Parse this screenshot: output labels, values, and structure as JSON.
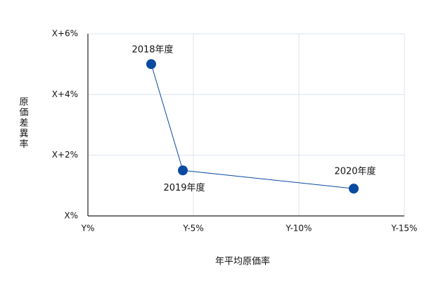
{
  "chart_data": {
    "type": "scatter",
    "x_label": "年平均原価率",
    "y_label": "原価差異率",
    "x": [
      -3,
      -4.5,
      -12.6
    ],
    "values": [
      5,
      1.5,
      0.9
    ],
    "point_labels": [
      "2018年度",
      "2019年度",
      "2020年度"
    ],
    "color": "#0a4aa0",
    "connect": true,
    "xlim": [
      0,
      -15
    ],
    "xticks": [
      {
        "value": 0,
        "label": "Y%"
      },
      {
        "value": -5,
        "label": "Y-5%"
      },
      {
        "value": -10,
        "label": "Y-10%"
      },
      {
        "value": -15,
        "label": "Y-15%"
      }
    ],
    "ylim": [
      0,
      6
    ],
    "yticks": [
      {
        "value": 0,
        "label": "X%"
      },
      {
        "value": 2,
        "label": "X+2%"
      },
      {
        "value": 4,
        "label": "X+4%"
      },
      {
        "value": 6,
        "label": "X+6%"
      }
    ],
    "grid": true
  }
}
